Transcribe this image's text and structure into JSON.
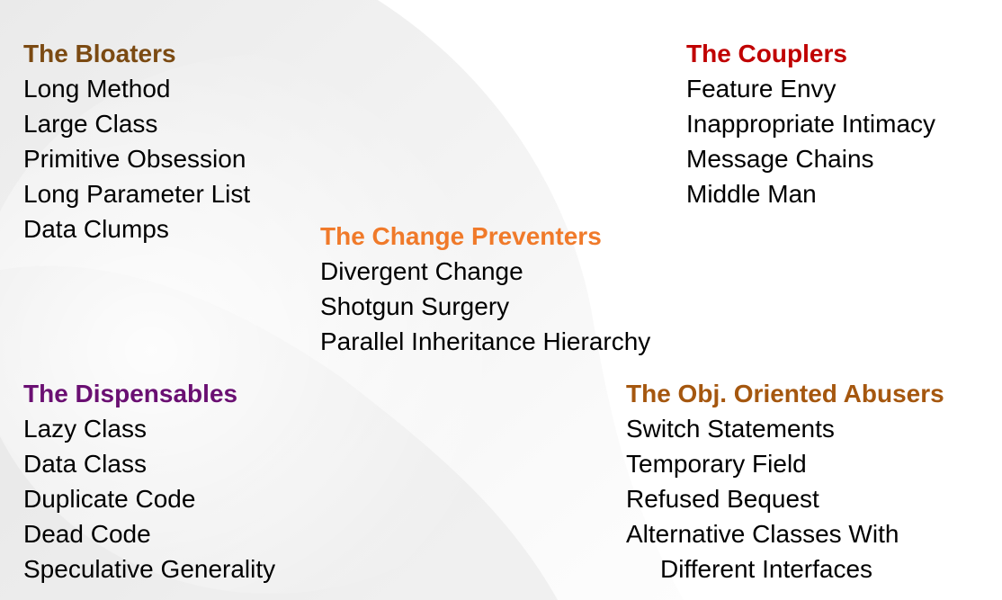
{
  "colors": {
    "bloaters": "#7B4A12",
    "couplers": "#C00000",
    "change_preventers": "#F07A2A",
    "dispensables": "#6A0F72",
    "abusers": "#A5570F"
  },
  "bloaters": {
    "title": "The Bloaters",
    "items": [
      "Long Method",
      "Large Class",
      "Primitive Obsession",
      "Long Parameter List",
      "Data Clumps"
    ]
  },
  "couplers": {
    "title": "The Couplers",
    "items": [
      "Feature Envy",
      "Inappropriate Intimacy",
      "Message Chains",
      "Middle Man"
    ]
  },
  "change_preventers": {
    "title": "The Change Preventers",
    "items": [
      "Divergent Change",
      "Shotgun Surgery",
      "Parallel Inheritance Hierarchy"
    ]
  },
  "dispensables": {
    "title": "The Dispensables",
    "items": [
      "Lazy Class",
      "Data Class",
      "Duplicate Code",
      "Dead Code",
      "Speculative Generality"
    ]
  },
  "abusers": {
    "title": "The Obj. Oriented Abusers",
    "items": [
      "Switch Statements",
      "Temporary Field",
      "Refused Bequest",
      "Alternative Classes With",
      "Different Interfaces"
    ]
  }
}
